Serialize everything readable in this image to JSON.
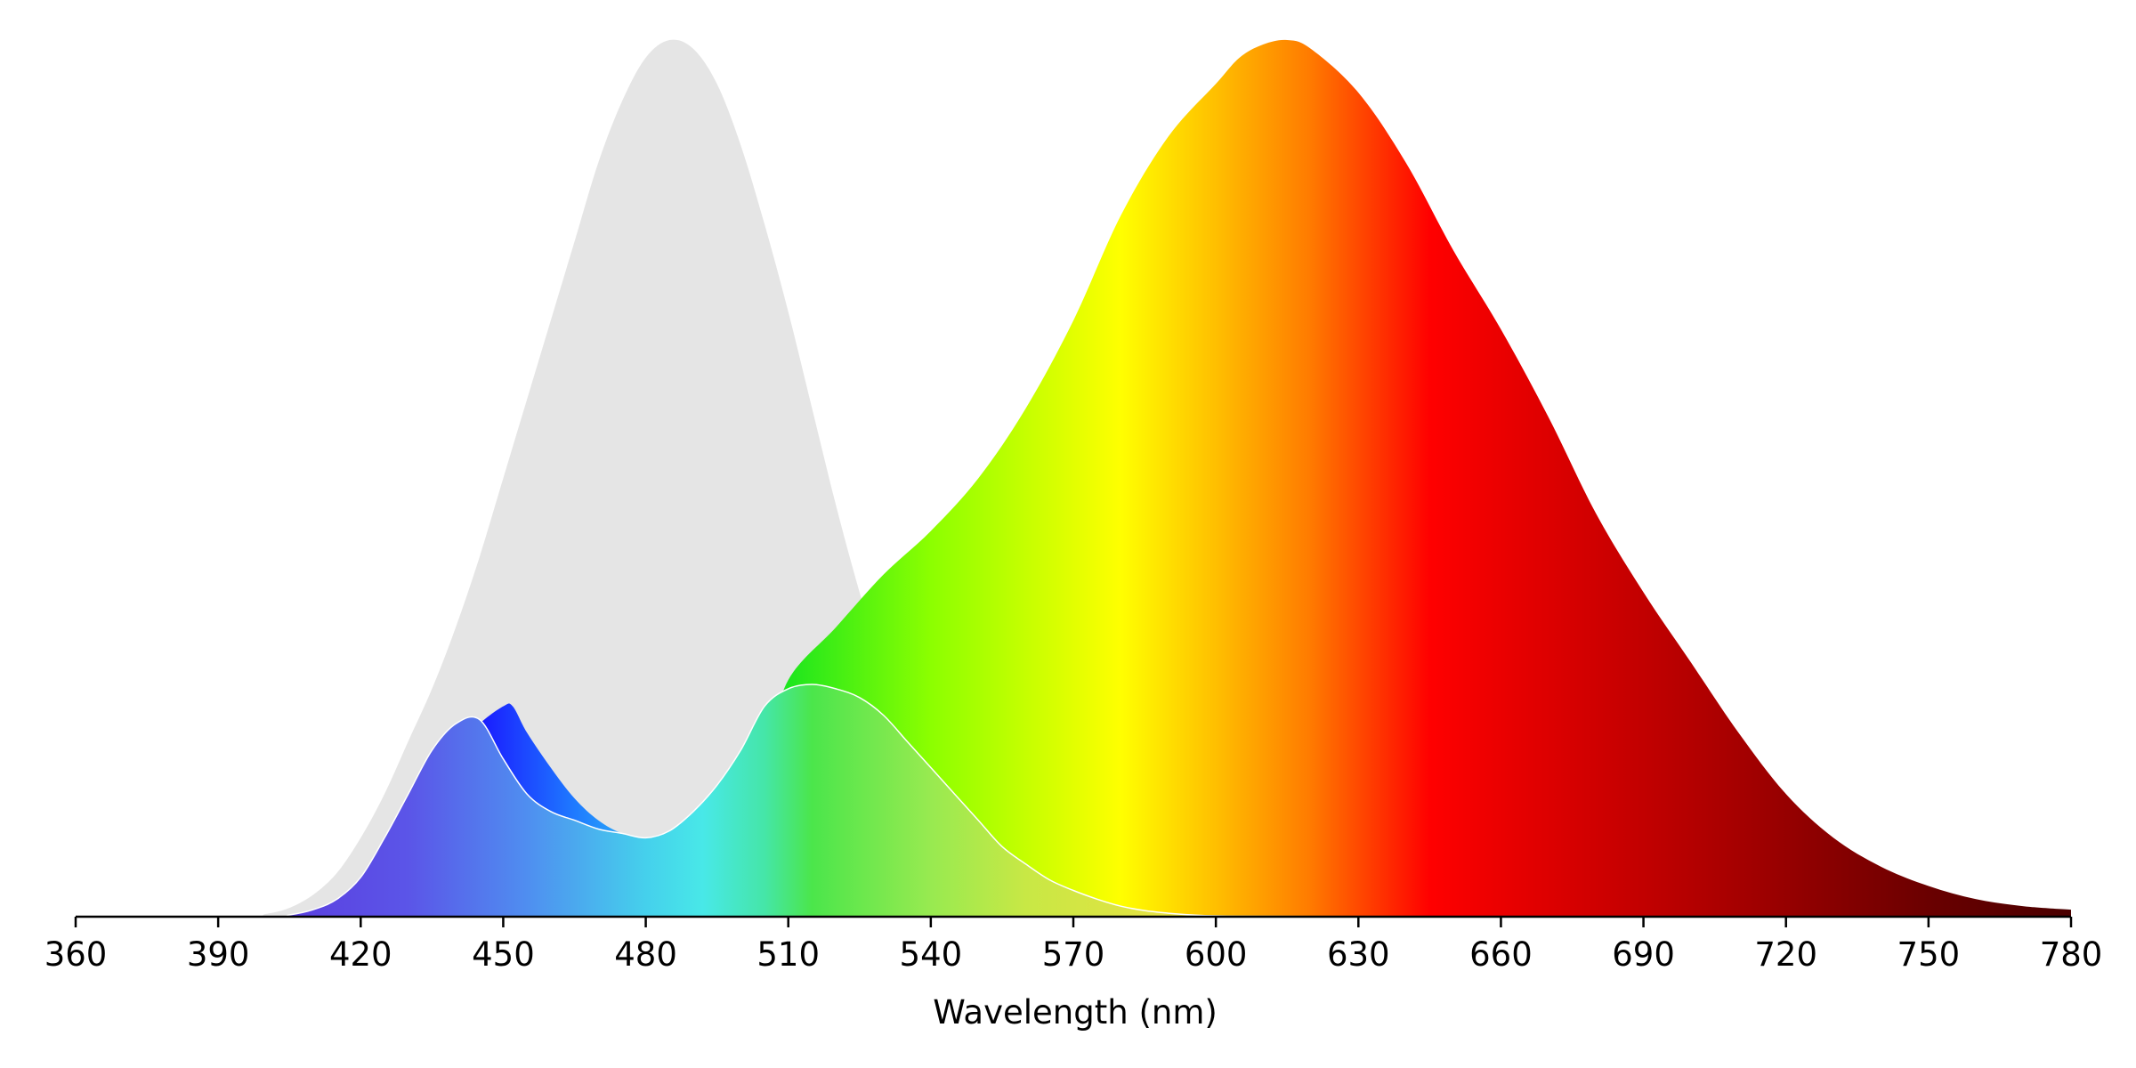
{
  "chart_data": {
    "type": "area",
    "title": "",
    "xlabel": "Wavelength (nm)",
    "ylabel": "",
    "xlim": [
      360,
      780
    ],
    "ylim": [
      0,
      1
    ],
    "grid": false,
    "y_axis_visible": false,
    "x_ticks": [
      "360",
      "390",
      "420",
      "450",
      "480",
      "510",
      "540",
      "570",
      "600",
      "630",
      "660",
      "690",
      "720",
      "750",
      "780"
    ],
    "series": [
      {
        "fill": "#e5e5e5",
        "fill_mode": "solid",
        "x": [
          360,
          395,
          400,
          405,
          410,
          415,
          420,
          425,
          430,
          435,
          440,
          445,
          450,
          455,
          460,
          465,
          470,
          475,
          480,
          485,
          490,
          495,
          500,
          505,
          510,
          515,
          520,
          525,
          530,
          535,
          540,
          545,
          550,
          555,
          560,
          565,
          570,
          575,
          580,
          585,
          590,
          595,
          600,
          610,
          620,
          640,
          780
        ],
        "y": [
          0,
          0,
          0.003,
          0.01,
          0.025,
          0.05,
          0.09,
          0.14,
          0.2,
          0.26,
          0.33,
          0.41,
          0.5,
          0.59,
          0.68,
          0.77,
          0.86,
          0.93,
          0.98,
          1.0,
          0.99,
          0.95,
          0.88,
          0.79,
          0.69,
          0.58,
          0.47,
          0.37,
          0.28,
          0.2,
          0.14,
          0.09,
          0.055,
          0.032,
          0.018,
          0.01,
          0.005,
          0.003,
          0.002,
          0.001,
          0.001,
          0.001,
          0.001,
          0.0005,
          0.0003,
          0,
          0
        ]
      },
      {
        "fill": "spectrum",
        "fill_mode": "spectrum",
        "x": [
          360,
          405,
          410,
          415,
          420,
          425,
          430,
          435,
          440,
          445,
          450,
          452,
          455,
          460,
          465,
          470,
          475,
          480,
          485,
          490,
          495,
          500,
          505,
          510,
          520,
          530,
          540,
          550,
          560,
          570,
          580,
          590,
          600,
          605,
          610,
          615,
          620,
          630,
          640,
          650,
          660,
          670,
          680,
          690,
          700,
          710,
          720,
          730,
          740,
          750,
          760,
          770,
          780
        ],
        "y": [
          0,
          0,
          0.002,
          0.008,
          0.02,
          0.045,
          0.09,
          0.14,
          0.19,
          0.22,
          0.24,
          0.24,
          0.21,
          0.17,
          0.135,
          0.11,
          0.095,
          0.09,
          0.093,
          0.105,
          0.125,
          0.15,
          0.185,
          0.27,
          0.33,
          0.39,
          0.44,
          0.5,
          0.58,
          0.68,
          0.8,
          0.89,
          0.95,
          0.98,
          0.995,
          1.0,
          0.99,
          0.94,
          0.86,
          0.76,
          0.67,
          0.57,
          0.46,
          0.37,
          0.29,
          0.21,
          0.14,
          0.09,
          0.057,
          0.035,
          0.02,
          0.012,
          0.008
        ]
      },
      {
        "fill": "spectrum-pale",
        "fill_mode": "spectrum",
        "outline": "#ffffff",
        "x": [
          360,
          400,
          405,
          410,
          415,
          420,
          425,
          430,
          435,
          440,
          445,
          450,
          455,
          460,
          465,
          470,
          475,
          480,
          485,
          490,
          495,
          500,
          505,
          510,
          515,
          520,
          525,
          530,
          535,
          540,
          545,
          550,
          555,
          560,
          565,
          570,
          575,
          580,
          585,
          590,
          595,
          600,
          610,
          620,
          630,
          780
        ],
        "y": [
          0,
          0,
          0.002,
          0.008,
          0.02,
          0.045,
          0.09,
          0.14,
          0.19,
          0.22,
          0.225,
          0.18,
          0.14,
          0.12,
          0.11,
          0.1,
          0.095,
          0.09,
          0.098,
          0.12,
          0.15,
          0.19,
          0.24,
          0.26,
          0.265,
          0.26,
          0.25,
          0.23,
          0.2,
          0.17,
          0.14,
          0.11,
          0.08,
          0.06,
          0.042,
          0.03,
          0.02,
          0.012,
          0.007,
          0.004,
          0.002,
          0.001,
          0.0005,
          0.0003,
          0.0001,
          0
        ]
      }
    ]
  }
}
